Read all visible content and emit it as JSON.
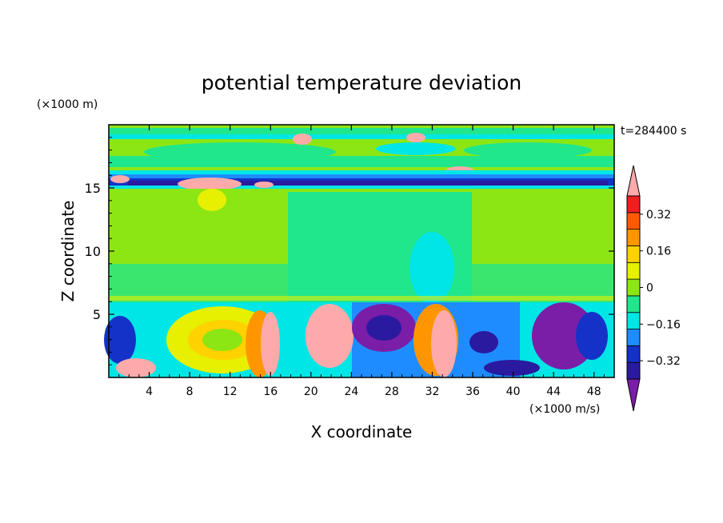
{
  "chart_data": {
    "type": "heatmap",
    "title": "potential temperature deviation",
    "xlabel": "X coordinate",
    "ylabel": "Z coordinate",
    "x_unit": "(×1000 m/s)",
    "y_unit": "(×1000 m)",
    "time_label": "t=284400 s",
    "xlim": [
      0,
      50
    ],
    "ylim": [
      0,
      20
    ],
    "x_ticks": [
      "4",
      "8",
      "12",
      "16",
      "20",
      "24",
      "28",
      "32",
      "36",
      "40",
      "44",
      "48"
    ],
    "y_ticks": [
      "5",
      "10",
      "15"
    ],
    "colorbar": {
      "levels": [
        -0.48,
        -0.4,
        -0.32,
        -0.24,
        -0.16,
        -0.08,
        0,
        0.08,
        0.16,
        0.24,
        0.32,
        0.4,
        0.48
      ],
      "colors": [
        "#7a1ea8",
        "#2a1aa0",
        "#1432c8",
        "#1e8cff",
        "#00e6e6",
        "#20e68c",
        "#8ce614",
        "#e6f000",
        "#ffd200",
        "#ff9600",
        "#ff5a00",
        "#f01e1e",
        "#ffaaaa"
      ],
      "tick_labels": [
        "0.32",
        "0.16",
        "0",
        "−0.16",
        "−0.32"
      ],
      "tick_values": [
        0.32,
        0.16,
        0,
        -0.16,
        -0.32
      ]
    }
  }
}
